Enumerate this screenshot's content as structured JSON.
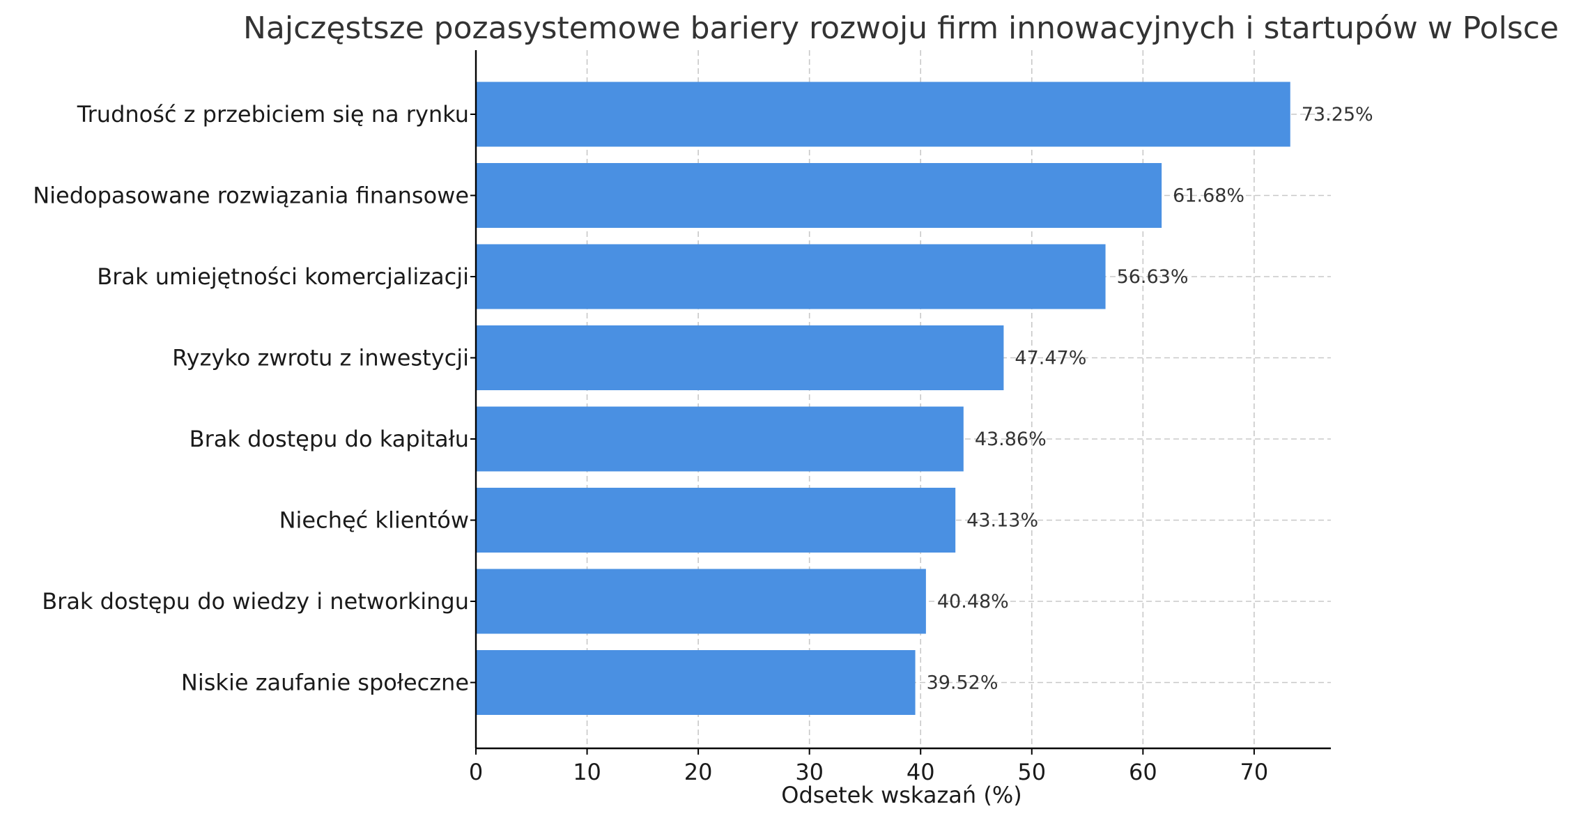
{
  "chart_data": {
    "type": "bar",
    "orientation": "horizontal",
    "title": "Najczęstsze pozasystemowe bariery rozwoju firm innowacyjnych i startupów w Polsce",
    "xlabel": "Odsetek wskazań (%)",
    "ylabel": "",
    "categories": [
      "Trudność z przebiciem się na rynku",
      "Niedopasowane rozwiązania finansowe",
      "Brak umiejętności komercjalizacji",
      "Ryzyko zwrotu z inwestycji",
      "Brak dostępu do kapitału",
      "Niechęć klientów",
      "Brak dostępu do wiedzy i networkingu",
      "Niskie zaufanie społeczne"
    ],
    "values": [
      73.25,
      61.68,
      56.63,
      47.47,
      43.86,
      43.13,
      40.48,
      39.52
    ],
    "value_labels": [
      "73.25%",
      "61.68%",
      "56.63%",
      "47.47%",
      "43.86%",
      "43.13%",
      "40.48%",
      "39.52%"
    ],
    "xlim": [
      0,
      76.9
    ],
    "xticks": [
      0,
      10,
      20,
      30,
      40,
      50,
      60,
      70
    ],
    "xtick_labels": [
      "0",
      "10",
      "20",
      "30",
      "40",
      "50",
      "60",
      "70"
    ],
    "grid": true,
    "legend": "none",
    "bar_color": "#4a90e2"
  }
}
